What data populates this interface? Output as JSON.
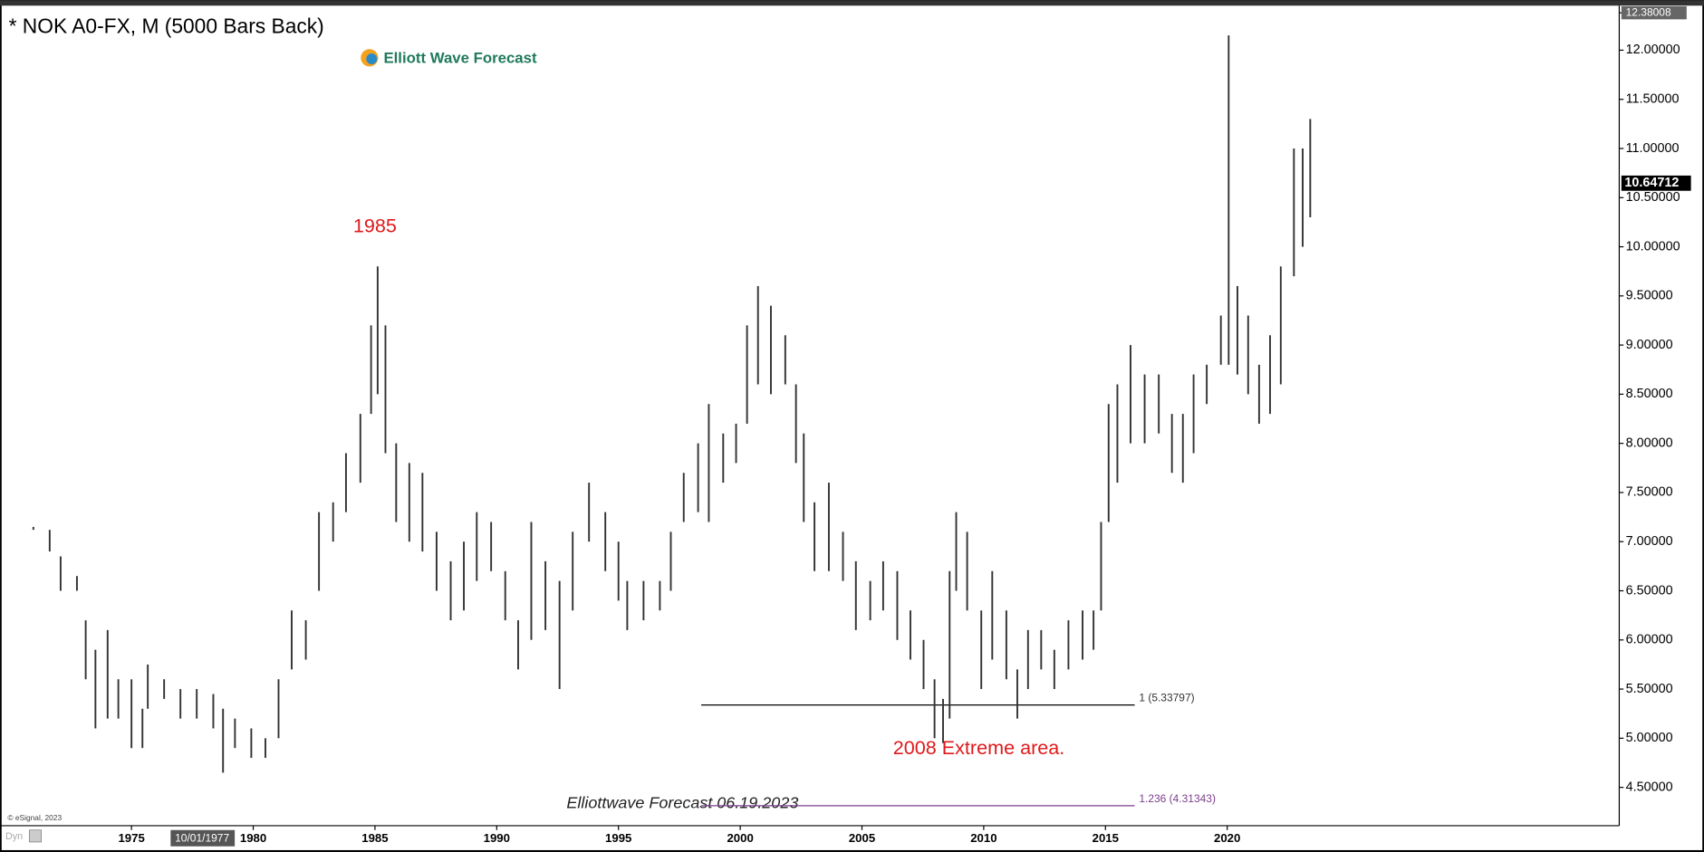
{
  "chart_data": {
    "type": "ohlc",
    "title": "* NOK A0-FX, M (5000 Bars Back)",
    "logo": "Elliott Wave Forecast",
    "watermark": "Elliottwave Forecast  06.19.2023",
    "copyright": "© eSignal, 2023",
    "corner_label": "Dyn",
    "cursor_label": "10/01/1977",
    "annotations": [
      {
        "text": "1985",
        "x": 1985.0,
        "y": 10.2
      },
      {
        "text": "2008 Extreme area.",
        "x": 2009.8,
        "y": 4.89
      }
    ],
    "fib_levels": [
      {
        "value": 5.33797,
        "label": "1 (5.33797)",
        "color": "#000000",
        "x": [
          1998.4,
          2016.2
        ]
      },
      {
        "value": 4.31343,
        "label": "1.236 (4.31343)",
        "color": "#7b3f8c",
        "x": [
          1998.4,
          2016.2
        ]
      }
    ],
    "last_price": {
      "value": 10.64712,
      "label": "10.64712"
    },
    "color": "#333333",
    "xlim": [
      1969.6,
      2036.1
    ],
    "ylim": [
      4.11,
      12.38008
    ],
    "xticks": [
      1975,
      1980,
      1985,
      1990,
      1995,
      2000,
      2005,
      2010,
      2015,
      2020
    ],
    "yticks": [
      {
        "value": 4.5,
        "label": "4.50000"
      },
      {
        "value": 5.0,
        "label": "5.00000"
      },
      {
        "value": 5.5,
        "label": "5.50000"
      },
      {
        "value": 6.0,
        "label": "6.00000"
      },
      {
        "value": 6.5,
        "label": "6.50000"
      },
      {
        "value": 7.0,
        "label": "7.00000"
      },
      {
        "value": 7.5,
        "label": "7.50000"
      },
      {
        "value": 8.0,
        "label": "8.00000"
      },
      {
        "value": 8.5,
        "label": "8.50000"
      },
      {
        "value": 9.0,
        "label": "9.00000"
      },
      {
        "value": 9.5,
        "label": "9.50000"
      },
      {
        "value": 10.0,
        "label": "10.00000"
      },
      {
        "value": 10.5,
        "label": "10.50000"
      },
      {
        "value": 11.0,
        "label": "11.00000"
      },
      {
        "value": 11.5,
        "label": "11.50000"
      },
      {
        "value": 12.0,
        "label": "12.00000"
      },
      {
        "value": 12.38008,
        "label": "12.38008"
      }
    ],
    "x": [
      1970.97,
      1971.64,
      1972.09,
      1972.76,
      1973.12,
      1973.52,
      1974.02,
      1974.46,
      1975.0,
      1975.45,
      1975.67,
      1976.34,
      1977.01,
      1977.68,
      1978.36,
      1978.76,
      1979.25,
      1979.92,
      1980.5,
      1981.04,
      1981.58,
      1982.16,
      1982.7,
      1983.28,
      1983.81,
      1984.4,
      1984.84,
      1985.11,
      1985.43,
      1985.87,
      1986.41,
      1986.95,
      1987.53,
      1988.11,
      1988.65,
      1989.18,
      1989.77,
      1990.35,
      1990.88,
      1991.42,
      1992.0,
      1992.58,
      1993.12,
      1993.79,
      1994.46,
      1995.0,
      1995.36,
      1996.03,
      1996.7,
      1997.15,
      1997.68,
      1998.27,
      1998.71,
      1999.3,
      1999.83,
      2000.28,
      2000.73,
      2001.26,
      2001.85,
      2002.29,
      2002.61,
      2003.05,
      2003.64,
      2004.22,
      2004.75,
      2005.34,
      2005.87,
      2006.45,
      2006.99,
      2007.53,
      2007.98,
      2008.33,
      2008.6,
      2008.87,
      2009.32,
      2009.9,
      2010.35,
      2010.93,
      2011.38,
      2011.82,
      2012.36,
      2012.9,
      2013.48,
      2014.06,
      2014.51,
      2014.82,
      2015.13,
      2015.49,
      2016.03,
      2016.61,
      2017.19,
      2017.73,
      2018.18,
      2018.62,
      2019.16,
      2019.74,
      2020.06,
      2020.42,
      2020.86,
      2021.31,
      2021.76,
      2022.2,
      2022.74,
      2023.1,
      2023.41
    ],
    "high": [
      7.15,
      7.12,
      6.85,
      6.65,
      6.2,
      5.9,
      6.1,
      5.6,
      5.6,
      5.3,
      5.75,
      5.6,
      5.5,
      5.5,
      5.45,
      5.3,
      5.2,
      5.1,
      5.0,
      5.6,
      6.3,
      6.2,
      7.3,
      7.4,
      7.9,
      8.3,
      9.2,
      9.8,
      9.2,
      8.0,
      7.8,
      7.7,
      7.1,
      6.8,
      7.0,
      7.3,
      7.2,
      6.7,
      6.2,
      7.2,
      6.8,
      6.6,
      7.1,
      7.6,
      7.3,
      7.0,
      6.6,
      6.6,
      6.6,
      7.1,
      7.7,
      8.0,
      8.4,
      8.1,
      8.2,
      9.2,
      9.6,
      9.4,
      9.1,
      8.6,
      8.1,
      7.4,
      7.6,
      7.1,
      6.8,
      6.6,
      6.8,
      6.7,
      6.3,
      6.0,
      5.6,
      5.4,
      6.7,
      7.3,
      7.1,
      6.3,
      6.7,
      6.3,
      5.7,
      6.1,
      6.1,
      5.9,
      6.2,
      6.3,
      6.3,
      7.2,
      8.4,
      8.6,
      9.0,
      8.7,
      8.7,
      8.3,
      8.3,
      8.7,
      8.8,
      9.3,
      12.15,
      9.6,
      9.3,
      8.8,
      9.1,
      9.8,
      11.0,
      11.0,
      11.3
    ],
    "low": [
      7.12,
      6.9,
      6.5,
      6.5,
      5.6,
      5.1,
      5.2,
      5.2,
      4.9,
      4.9,
      5.3,
      5.4,
      5.2,
      5.2,
      5.1,
      4.65,
      4.9,
      4.8,
      4.8,
      5.0,
      5.7,
      5.8,
      6.5,
      7.0,
      7.3,
      7.6,
      8.3,
      8.5,
      7.9,
      7.2,
      7.0,
      6.9,
      6.5,
      6.2,
      6.3,
      6.6,
      6.7,
      6.2,
      5.7,
      6.0,
      6.1,
      5.5,
      6.3,
      7.0,
      6.7,
      6.4,
      6.1,
      6.2,
      6.3,
      6.5,
      7.2,
      7.3,
      7.2,
      7.6,
      7.8,
      8.2,
      8.6,
      8.5,
      8.6,
      7.8,
      7.2,
      6.7,
      6.7,
      6.6,
      6.1,
      6.2,
      6.3,
      6.0,
      5.8,
      5.5,
      5.0,
      4.95,
      5.2,
      6.5,
      6.3,
      5.5,
      5.8,
      5.6,
      5.2,
      5.5,
      5.7,
      5.5,
      5.7,
      5.8,
      5.9,
      6.3,
      7.2,
      7.6,
      8.0,
      8.0,
      8.1,
      7.7,
      7.6,
      7.9,
      8.4,
      8.8,
      8.8,
      8.7,
      8.5,
      8.2,
      8.3,
      8.6,
      9.7,
      10.0,
      10.3
    ]
  }
}
